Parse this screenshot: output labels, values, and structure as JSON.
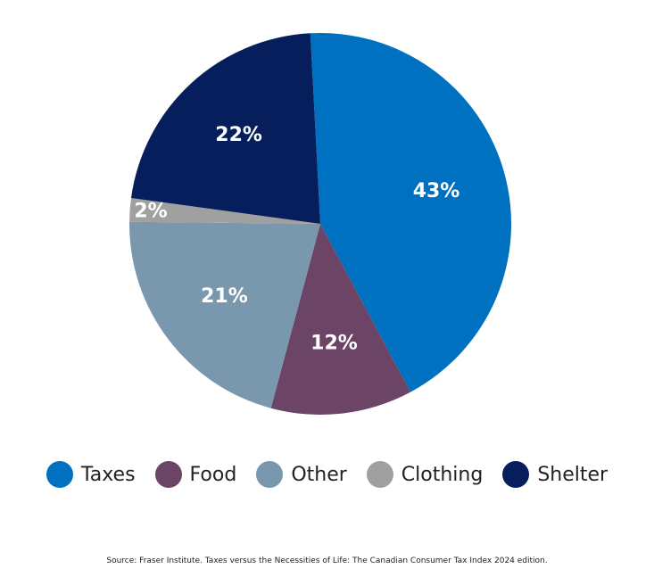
{
  "chart_data": {
    "type": "pie",
    "slices": [
      {
        "name": "Taxes",
        "value": 43,
        "label": "43%",
        "color": "#0070C0"
      },
      {
        "name": "Food",
        "value": 12,
        "label": "12%",
        "color": "#6B4466"
      },
      {
        "name": "Other",
        "value": 21,
        "label": "21%",
        "color": "#7A98AD"
      },
      {
        "name": "Clothing",
        "value": 2,
        "label": "2%",
        "color": "#A0A0A0"
      },
      {
        "name": "Shelter",
        "value": 22,
        "label": "22%",
        "color": "#061F5C"
      }
    ],
    "legend_position": "bottom"
  },
  "legend": {
    "items": [
      {
        "label": "Taxes",
        "color": "#0070C0"
      },
      {
        "label": "Food",
        "color": "#6B4466"
      },
      {
        "label": "Other",
        "color": "#7A98AD"
      },
      {
        "label": "Clothing",
        "color": "#A0A0A0"
      },
      {
        "label": "Shelter",
        "color": "#061F5C"
      }
    ]
  },
  "source": "Source: Fraser Institute. Taxes versus the Necessities of Life: The Canadian Consumer Tax Index 2024 edition."
}
